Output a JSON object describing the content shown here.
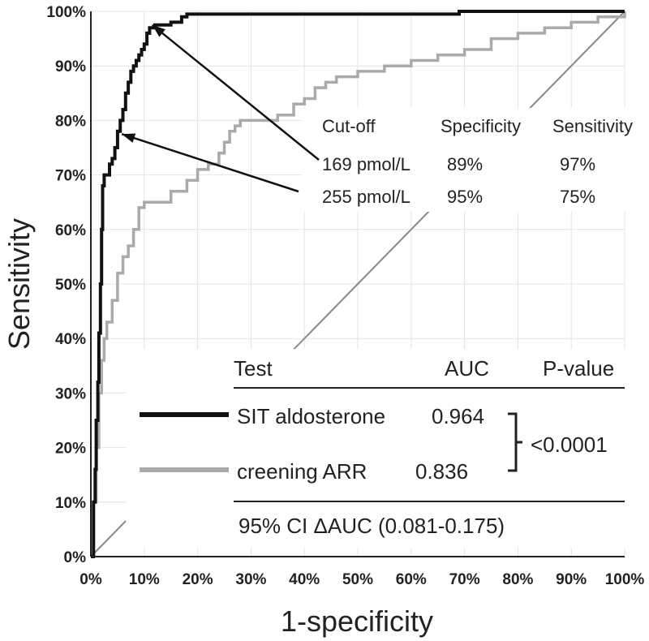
{
  "chart_data": {
    "type": "line",
    "title": "",
    "xlabel": "1-specificity",
    "ylabel": "Sensitivity",
    "xlim": [
      0,
      100
    ],
    "ylim": [
      0,
      100
    ],
    "x_ticks": [
      "0%",
      "10%",
      "20%",
      "30%",
      "40%",
      "50%",
      "60%",
      "70%",
      "80%",
      "90%",
      "100%"
    ],
    "y_ticks": [
      "0%",
      "10%",
      "20%",
      "30%",
      "40%",
      "50%",
      "60%",
      "70%",
      "80%",
      "90%",
      "100%"
    ],
    "grid": true,
    "series": [
      {
        "name": "SIT aldosterone",
        "color": "#111111",
        "x": [
          0,
          0.5,
          0.8,
          1.0,
          1.3,
          1.5,
          1.8,
          2.0,
          2.2,
          2.5,
          3.0,
          3.5,
          4.0,
          4.5,
          5.0,
          5.5,
          6.0,
          6.5,
          7.0,
          7.5,
          8.0,
          8.5,
          9.0,
          9.5,
          10.0,
          10.5,
          11.0,
          11.5,
          12.0,
          13.0,
          14.0,
          15.0,
          16.0,
          17.0,
          18.0,
          20.0,
          30.0,
          40.0,
          50.0,
          60.0,
          67.0,
          69.0,
          70.0,
          80.0,
          90.0,
          100.0
        ],
        "y": [
          0,
          10,
          16,
          25,
          32,
          41,
          50,
          60,
          68,
          70,
          70,
          72,
          73,
          75,
          78,
          80,
          82,
          85,
          87,
          89,
          90,
          91,
          92,
          93,
          94,
          96,
          97,
          97,
          97.5,
          97.5,
          97.5,
          98,
          98,
          99,
          99.5,
          99.5,
          99.5,
          99.5,
          99.5,
          99.5,
          99.5,
          100,
          100,
          100,
          100,
          100
        ]
      },
      {
        "name": "creening ARR",
        "color": "#aaaaaa",
        "x": [
          0,
          0.5,
          1.0,
          1.5,
          2.0,
          2.5,
          3.0,
          4.0,
          5.0,
          6.0,
          7.0,
          8.0,
          9.0,
          10.0,
          12.0,
          15.0,
          18.0,
          20.0,
          22.0,
          24.0,
          25.0,
          26.0,
          27.0,
          28.0,
          30.0,
          35.0,
          38.0,
          40.0,
          42.0,
          44.0,
          46.0,
          50.0,
          55.0,
          60.0,
          65.0,
          70.0,
          75.0,
          80.0,
          85.0,
          90.0,
          95.0,
          100.0
        ],
        "y": [
          0,
          10,
          20,
          30,
          36,
          40,
          43,
          47,
          52,
          55,
          57,
          60,
          64,
          65,
          65,
          67,
          69,
          71,
          72,
          74,
          76,
          78,
          79,
          80,
          80,
          81,
          83,
          84,
          86,
          87,
          88,
          89,
          90,
          91,
          92,
          93,
          95,
          96,
          97,
          98,
          99,
          100
        ]
      },
      {
        "name": "Reference",
        "color": "#888888",
        "x": [
          0,
          100
        ],
        "y": [
          0,
          100
        ]
      }
    ],
    "annotations": {
      "cutoff_table": {
        "headers": [
          "Cut-off",
          "Specificity",
          "Sensitivity"
        ],
        "rows": [
          [
            "169 pmol/L",
            "89%",
            "97%"
          ],
          [
            "255 pmol/L",
            "95%",
            "75%"
          ]
        ],
        "arrow_targets": [
          {
            "x": 11.5,
            "y": 97.5
          },
          {
            "x": 5.8,
            "y": 77.5
          }
        ]
      },
      "legend_table": {
        "headers": [
          "Test",
          "AUC",
          "P-value"
        ],
        "rows": [
          {
            "name": "SIT aldosterone",
            "auc": "0.964"
          },
          {
            "name": "creening ARR",
            "auc": "0.836"
          }
        ],
        "p_value": "<0.0001",
        "ci_text": "95% CI ΔAUC (0.081-0.175)"
      }
    }
  }
}
